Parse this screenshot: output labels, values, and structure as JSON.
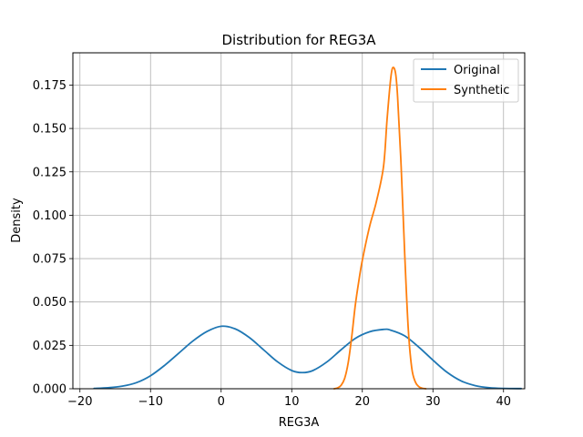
{
  "chart_data": {
    "type": "line",
    "title": "Distribution for REG3A",
    "xlabel": "REG3A",
    "ylabel": "Density",
    "xlim": [
      -21,
      43
    ],
    "ylim": [
      0,
      0.1936
    ],
    "xticks": [
      -20,
      -10,
      0,
      10,
      20,
      30,
      40
    ],
    "xtick_labels": [
      "−20",
      "−10",
      "0",
      "10",
      "20",
      "30",
      "40"
    ],
    "yticks": [
      0,
      0.025,
      0.05,
      0.075,
      0.1,
      0.125,
      0.15,
      0.175
    ],
    "ytick_labels": [
      "0.000",
      "0.025",
      "0.050",
      "0.075",
      "0.100",
      "0.125",
      "0.150",
      "0.175"
    ],
    "grid": true,
    "legend_position": "top-right",
    "series": [
      {
        "name": "Original",
        "color": "#1f77b4",
        "x": [
          -18,
          -16,
          -14,
          -12,
          -10,
          -8,
          -6,
          -4,
          -2,
          0,
          2,
          4,
          6,
          8,
          10,
          11.5,
          13,
          15,
          17,
          19,
          21,
          23,
          24,
          26,
          28,
          30,
          32,
          34,
          36,
          38,
          40,
          42.5
        ],
        "y": [
          0.0002,
          0.0006,
          0.0015,
          0.0035,
          0.0075,
          0.0135,
          0.0205,
          0.0275,
          0.033,
          0.036,
          0.0345,
          0.0295,
          0.0225,
          0.0155,
          0.0105,
          0.0093,
          0.0105,
          0.0155,
          0.0225,
          0.029,
          0.0328,
          0.0342,
          0.0338,
          0.0305,
          0.024,
          0.0165,
          0.0095,
          0.0045,
          0.0018,
          0.0006,
          0.0002,
          0.0001
        ]
      },
      {
        "name": "Synthetic",
        "color": "#ff7f0e",
        "x": [
          16,
          16.5,
          17,
          17.5,
          18,
          18.5,
          19,
          19.5,
          20,
          21,
          22,
          23,
          23.5,
          24,
          24.3,
          24.7,
          25,
          25.5,
          26,
          26.5,
          27,
          27.5,
          28,
          28.5,
          29
        ],
        "y": [
          0.0,
          0.0005,
          0.002,
          0.006,
          0.015,
          0.03,
          0.048,
          0.062,
          0.074,
          0.093,
          0.108,
          0.128,
          0.155,
          0.178,
          0.185,
          0.182,
          0.168,
          0.128,
          0.078,
          0.035,
          0.012,
          0.004,
          0.0012,
          0.0003,
          0.0
        ]
      }
    ]
  }
}
